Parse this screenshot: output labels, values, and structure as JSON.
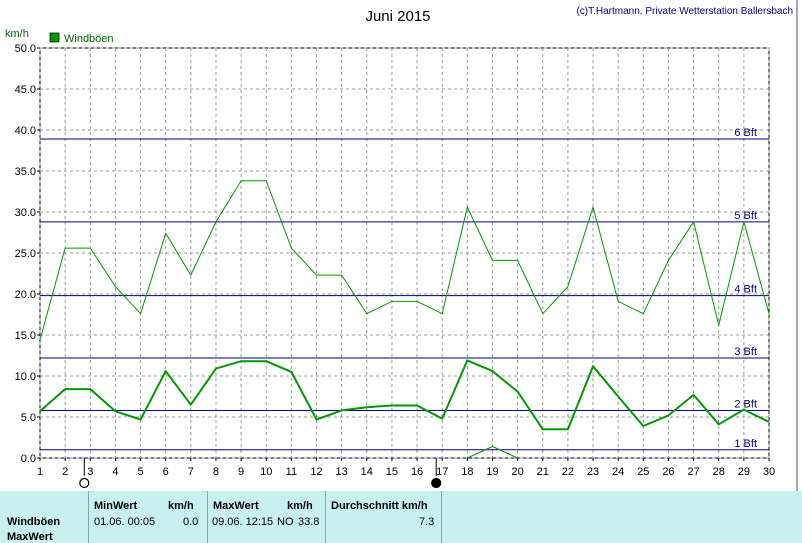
{
  "chart_data": {
    "type": "line",
    "title": "Juni 2015",
    "credit": "(c)T.Hartmann, Private Wetterstation Ballersbach",
    "ylabel": "km/h",
    "xlabel": "",
    "x": [
      1,
      2,
      3,
      4,
      5,
      6,
      7,
      8,
      9,
      10,
      11,
      12,
      13,
      14,
      15,
      16,
      17,
      18,
      19,
      20,
      21,
      22,
      23,
      24,
      25,
      26,
      27,
      28,
      29,
      30
    ],
    "ylim": [
      0,
      50
    ],
    "xlim": [
      1,
      30
    ],
    "yticks": [
      "0.0",
      "5.0",
      "10.0",
      "15.0",
      "20.0",
      "25.0",
      "30.0",
      "35.0",
      "40.0",
      "45.0",
      "50.0"
    ],
    "grid": true,
    "legend": {
      "position": "top-left",
      "label": "Windböen",
      "color": "#009900"
    },
    "series": [
      {
        "name": "Windböen",
        "role": "max",
        "color": "#009900",
        "values": [
          14.4,
          25.6,
          25.6,
          20.9,
          17.6,
          27.4,
          22.3,
          28.8,
          33.8,
          33.8,
          25.6,
          22.3,
          22.3,
          17.6,
          19.1,
          19.1,
          17.6,
          30.6,
          24.1,
          24.1,
          17.6,
          20.9,
          30.6,
          19.1,
          17.6,
          24.1,
          28.8,
          16.2,
          28.8,
          17.6
        ]
      },
      {
        "name": "Windböen",
        "role": "avg",
        "color": "#009900",
        "values": [
          5.7,
          8.4,
          8.4,
          5.7,
          4.7,
          10.6,
          6.5,
          10.9,
          11.8,
          11.8,
          10.5,
          4.7,
          5.8,
          6.2,
          6.4,
          6.4,
          4.8,
          11.9,
          10.6,
          8.1,
          3.5,
          3.5,
          11.2,
          7.5,
          3.9,
          5.2,
          7.7,
          4.1,
          5.9,
          4.4
        ]
      },
      {
        "name": "Windböen",
        "role": "min",
        "color": "#009900",
        "values": [
          null,
          null,
          null,
          null,
          null,
          null,
          null,
          null,
          null,
          null,
          null,
          null,
          null,
          null,
          null,
          null,
          null,
          0.0,
          1.4,
          0.0,
          null,
          null,
          null,
          null,
          null,
          null,
          null,
          null,
          null,
          null
        ]
      }
    ],
    "beaufort": [
      {
        "label": "1 Bft",
        "value": 1.0
      },
      {
        "label": "2 Bft",
        "value": 5.8
      },
      {
        "label": "3 Bft",
        "value": 12.2
      },
      {
        "label": "4 Bft",
        "value": 19.8
      },
      {
        "label": "5 Bft",
        "value": 28.8
      },
      {
        "label": "6 Bft",
        "value": 38.9
      }
    ],
    "moon_phases": [
      {
        "day": 3,
        "phase": "full"
      },
      {
        "day": 17,
        "phase": "new"
      }
    ]
  },
  "summary": {
    "row_label_1": "Windböen",
    "row_label_2": "MaxWert",
    "min_header": "MinWert",
    "min_unit": "km/h",
    "min_datetime": "01.06.  00:05",
    "min_value": "0.0",
    "max_header": "MaxWert",
    "max_unit": "km/h",
    "max_datetime": "09.06.  12:15",
    "max_direction": "NO",
    "max_value": "33.8",
    "avg_header": "Durchschnitt km/h",
    "avg_value": "7.3"
  }
}
